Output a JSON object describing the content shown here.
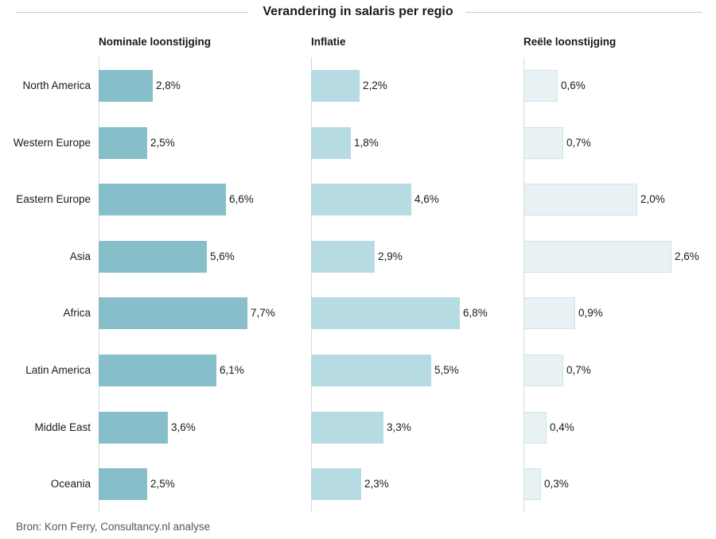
{
  "chart_data": {
    "type": "bar",
    "title": "Verandering in salaris per regio",
    "categories": [
      "North America",
      "Western Europe",
      "Eastern Europe",
      "Asia",
      "Africa",
      "Latin America",
      "Middle East",
      "Oceania"
    ],
    "series": [
      {
        "name": "Nominale loonstijging",
        "values": [
          2.8,
          2.5,
          6.6,
          5.6,
          7.7,
          6.1,
          3.6,
          2.5
        ],
        "labels": [
          "2,8%",
          "2,5%",
          "6,6%",
          "5,6%",
          "7,7%",
          "6,1%",
          "3,6%",
          "2,5%"
        ],
        "color": "#86bfca"
      },
      {
        "name": "Inflatie",
        "values": [
          2.2,
          1.8,
          4.6,
          2.9,
          6.8,
          5.5,
          3.3,
          2.3
        ],
        "labels": [
          "2,2%",
          "1,8%",
          "4,6%",
          "2,9%",
          "6,8%",
          "5,5%",
          "3,3%",
          "2,3%"
        ],
        "color": "#b6dbe2"
      },
      {
        "name": "Reële loonstijging",
        "values": [
          0.6,
          0.7,
          2.0,
          2.6,
          0.9,
          0.7,
          0.4,
          0.3
        ],
        "labels": [
          "0,6%",
          "0,7%",
          "2,0%",
          "2,6%",
          "0,9%",
          "0,7%",
          "0,4%",
          "0,3%"
        ],
        "color": "#e8f2f4"
      }
    ],
    "orientation": "horizontal",
    "grid": false,
    "legend": "none"
  },
  "footer": {
    "source": "Bron: Korn Ferry, Consultancy.nl analyse"
  }
}
